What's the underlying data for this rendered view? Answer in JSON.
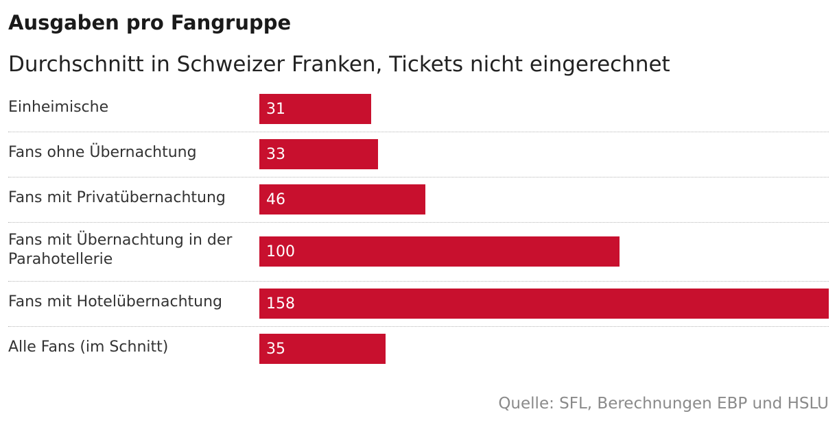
{
  "chart_data": {
    "type": "bar",
    "orientation": "horizontal",
    "title": "Ausgaben pro Fangruppe",
    "subtitle": "Durchschnitt in Schweizer Franken, Tickets nicht eingerechnet",
    "categories": [
      "Einheimische",
      "Fans ohne Übernachtung",
      "Fans mit Privatübernachtung",
      "Fans mit Übernachtung in der Parahotellerie",
      "Fans mit Hotelübernachtung",
      "Alle Fans (im Schnitt)"
    ],
    "values": [
      31,
      33,
      46,
      100,
      158,
      35
    ],
    "data_labels": [
      "31",
      "33",
      "46",
      "100",
      "158",
      "35"
    ],
    "xlim": [
      0,
      158
    ],
    "grid": false,
    "legend": "none",
    "bar_color": "#c8102e",
    "source": "Quelle: SFL, Berechnungen EBP und HSLU"
  }
}
